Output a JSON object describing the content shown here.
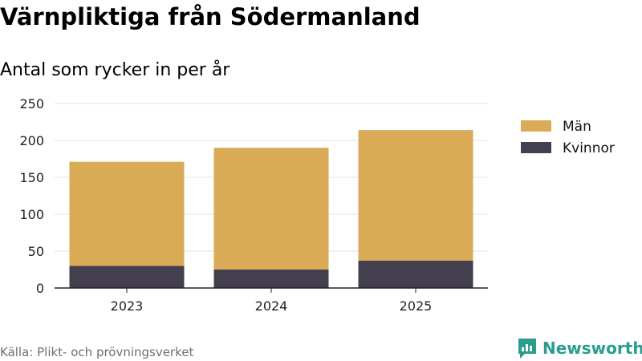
{
  "title": "Värnpliktiga från Södermanland",
  "subtitle": "Antal som rycker in per år",
  "source": "Källa: Plikt- och prövningsverket",
  "brand": "Newsworthy",
  "colors": {
    "man": "#d9ab57",
    "kvinnor": "#433f4f",
    "grid": "#e3e3e3",
    "axis": "#222222",
    "brand": "#2a9d8f"
  },
  "chart_data": {
    "type": "bar",
    "stacked": true,
    "categories": [
      "2023",
      "2024",
      "2025"
    ],
    "series": [
      {
        "name": "Kvinnor",
        "values": [
          30,
          25,
          37
        ],
        "color": "#433f4f"
      },
      {
        "name": "Män",
        "values": [
          141,
          165,
          177
        ],
        "color": "#d9ab57"
      }
    ],
    "legend": [
      {
        "name": "Män",
        "color": "#d9ab57"
      },
      {
        "name": "Kvinnor",
        "color": "#433f4f"
      }
    ],
    "ylim": [
      0,
      250
    ],
    "yticks": [
      "0",
      "50",
      "100",
      "150",
      "200",
      "250"
    ],
    "legend_position": "right",
    "grid": true
  }
}
